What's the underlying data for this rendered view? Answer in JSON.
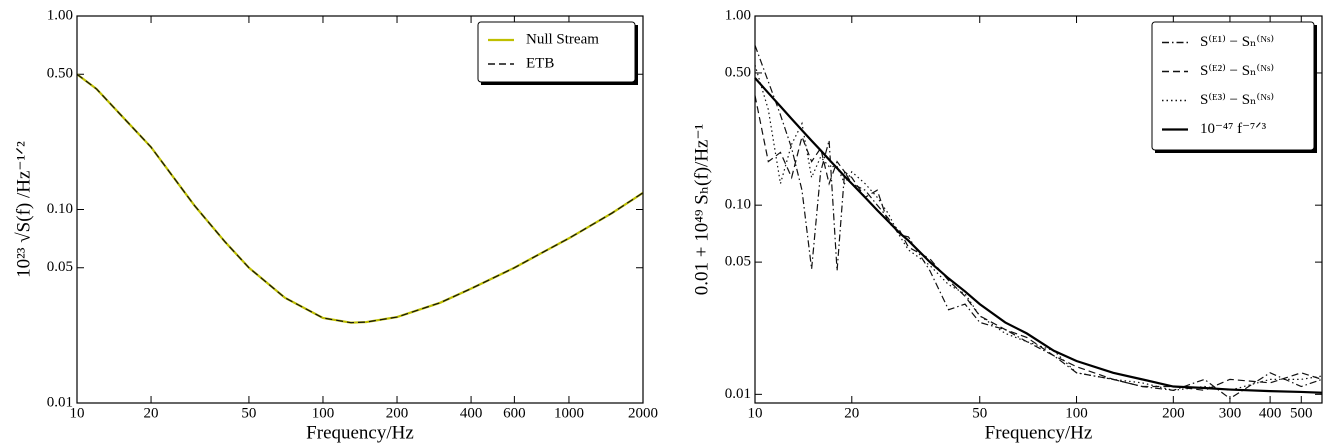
{
  "chart_data": [
    {
      "type": "line",
      "xlabel": "Frequency/Hz",
      "ylabel": "10²³ √S(f) /Hz⁻¹ᐟ²",
      "xscale": "log",
      "yscale": "log",
      "legend": "upper right",
      "xlim": [
        10,
        2000
      ],
      "ylim": [
        0.01,
        1
      ],
      "xticks": [
        10,
        20,
        50,
        100,
        200,
        400,
        600,
        1000,
        2000
      ],
      "yticks": [
        0.01,
        0.05,
        {
          "value": 0.1,
          "label": "0.10"
        },
        {
          "value": 0.5,
          "label": "0.50"
        },
        {
          "value": 1,
          "label": "1.00"
        }
      ],
      "x": [
        10,
        12,
        15,
        20,
        30,
        40,
        50,
        70,
        100,
        130,
        150,
        200,
        300,
        400,
        600,
        800,
        1000,
        1500,
        2000
      ],
      "series": [
        {
          "name": "Null Stream",
          "color": "#bfbf00",
          "linestyle": "solid",
          "values": [
            0.5,
            0.42,
            0.31,
            0.21,
            0.105,
            0.068,
            0.05,
            0.035,
            0.0275,
            0.026,
            0.0262,
            0.0278,
            0.033,
            0.039,
            0.05,
            0.061,
            0.071,
            0.096,
            0.122
          ]
        },
        {
          "name": "ETB",
          "color": "#111111",
          "linestyle": "dashed",
          "values": [
            0.5,
            0.42,
            0.31,
            0.21,
            0.105,
            0.068,
            0.05,
            0.035,
            0.0275,
            0.026,
            0.0262,
            0.0278,
            0.033,
            0.039,
            0.05,
            0.061,
            0.071,
            0.096,
            0.122
          ]
        }
      ]
    },
    {
      "type": "line",
      "xlabel": "Frequency/Hz",
      "ylabel": "0.01 + 10⁴⁹ Sₕ(f)/Hz⁻¹",
      "xscale": "log",
      "yscale": "log",
      "legend": "upper right",
      "xlim": [
        10,
        580
      ],
      "ylim": [
        0.009,
        1
      ],
      "xticks": [
        10,
        20,
        50,
        100,
        200,
        300,
        400,
        500
      ],
      "yticks": [
        0.01,
        0.05,
        {
          "value": 0.1,
          "label": "0.10"
        },
        {
          "value": 0.5,
          "label": "0.50"
        },
        {
          "value": 1,
          "label": "1.00"
        }
      ],
      "x": [
        10,
        11,
        12,
        13,
        14,
        15,
        16,
        17,
        18,
        19,
        20,
        22,
        24,
        26,
        28,
        30,
        35,
        40,
        45,
        50,
        60,
        70,
        85,
        100,
        130,
        160,
        200,
        250,
        300,
        400,
        500,
        580
      ],
      "series": [
        {
          "name": "S⁽ᴱ¹⁾ − Sₙ⁽ᴺˢ⁾",
          "color": "#111111",
          "linestyle": "dashdot",
          "values": [
            0.7,
            0.45,
            0.3,
            0.2,
            0.12,
            0.046,
            0.15,
            0.22,
            0.045,
            0.15,
            0.13,
            0.12,
            0.1,
            0.085,
            0.07,
            0.068,
            0.045,
            0.028,
            0.03,
            0.024,
            0.022,
            0.019,
            0.016,
            0.013,
            0.012,
            0.011,
            0.0105,
            0.012,
            0.0095,
            0.013,
            0.011,
            0.012
          ]
        },
        {
          "name": "S⁽ᴱ²⁾ − Sₙ⁽ᴺˢ⁾",
          "color": "#111111",
          "linestyle": "dashed",
          "values": [
            0.38,
            0.17,
            0.19,
            0.14,
            0.23,
            0.17,
            0.2,
            0.13,
            0.17,
            0.15,
            0.14,
            0.11,
            0.12,
            0.08,
            0.075,
            0.06,
            0.052,
            0.04,
            0.033,
            0.026,
            0.022,
            0.02,
            0.016,
            0.014,
            0.012,
            0.011,
            0.011,
            0.0105,
            0.012,
            0.0115,
            0.013,
            0.012
          ]
        },
        {
          "name": "S⁽ᴱ³⁾ − Sₙ⁽ᴺˢ⁾",
          "color": "#111111",
          "linestyle": "dotted",
          "values": [
            0.55,
            0.32,
            0.13,
            0.21,
            0.27,
            0.14,
            0.18,
            0.16,
            0.16,
            0.13,
            0.15,
            0.13,
            0.11,
            0.09,
            0.07,
            0.058,
            0.048,
            0.038,
            0.034,
            0.026,
            0.021,
            0.019,
            0.017,
            0.013,
            0.012,
            0.0115,
            0.0105,
            0.011,
            0.0105,
            0.012,
            0.012,
            0.0125
          ]
        },
        {
          "name": "10⁻⁴⁷ f⁻⁷ᐟ³",
          "color": "#000000",
          "linestyle": "solid",
          "values": [
            0.47,
            0.392,
            0.333,
            0.286,
            0.249,
            0.219,
            0.195,
            0.174,
            0.157,
            0.142,
            0.13,
            0.11,
            0.094,
            0.082,
            0.072,
            0.065,
            0.05,
            0.041,
            0.035,
            0.03,
            0.024,
            0.021,
            0.017,
            0.015,
            0.013,
            0.012,
            0.011,
            0.0108,
            0.0106,
            0.0104,
            0.0103,
            0.0102
          ]
        }
      ]
    }
  ]
}
